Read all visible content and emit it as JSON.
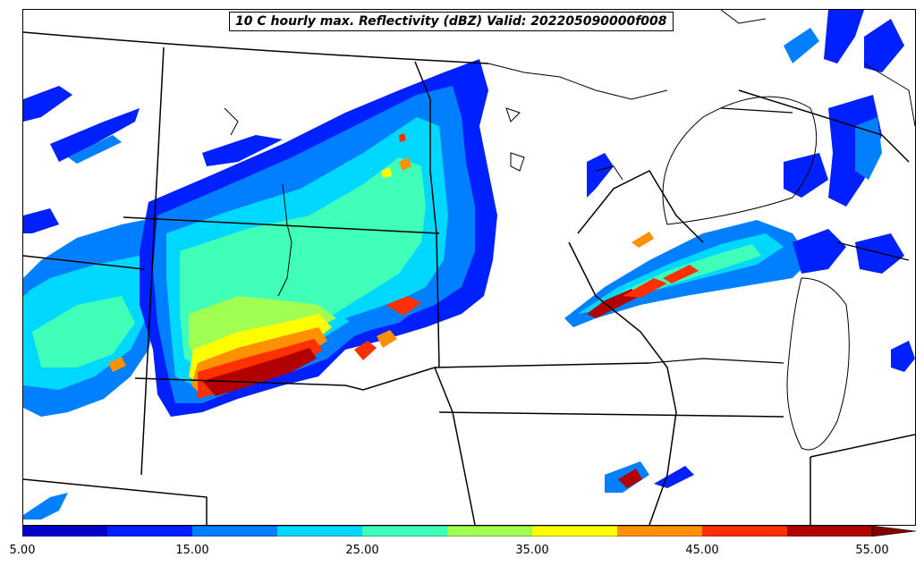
{
  "title": "10 C hourly max. Reflectivity (dBZ) Valid: 202205090000f008",
  "colorbar": {
    "min": 5,
    "max": 55,
    "extend": "max",
    "tick_labels": [
      "5.00",
      "15.00",
      "25.00",
      "35.00",
      "45.00",
      "55.00"
    ],
    "tick_values": [
      5,
      15,
      25,
      35,
      45,
      55
    ],
    "bins": [
      {
        "from": 5,
        "to": 10,
        "color": "#0000c8"
      },
      {
        "from": 10,
        "to": 15,
        "color": "#0020ff"
      },
      {
        "from": 15,
        "to": 20,
        "color": "#0080ff"
      },
      {
        "from": 20,
        "to": 25,
        "color": "#00d8ff"
      },
      {
        "from": 25,
        "to": 30,
        "color": "#40ffb8"
      },
      {
        "from": 30,
        "to": 35,
        "color": "#a0ff50"
      },
      {
        "from": 35,
        "to": 40,
        "color": "#ffff00"
      },
      {
        "from": 40,
        "to": 45,
        "color": "#ff9000"
      },
      {
        "from": 45,
        "to": 50,
        "color": "#ff3000"
      },
      {
        "from": 50,
        "to": 55,
        "color": "#b00000"
      }
    ],
    "extension_color": "#800000"
  },
  "map": {
    "projection": "lambert-conformal",
    "region": "north-central-united-states",
    "boundaries": [
      "country",
      "state",
      "coastline",
      "lakes"
    ]
  }
}
